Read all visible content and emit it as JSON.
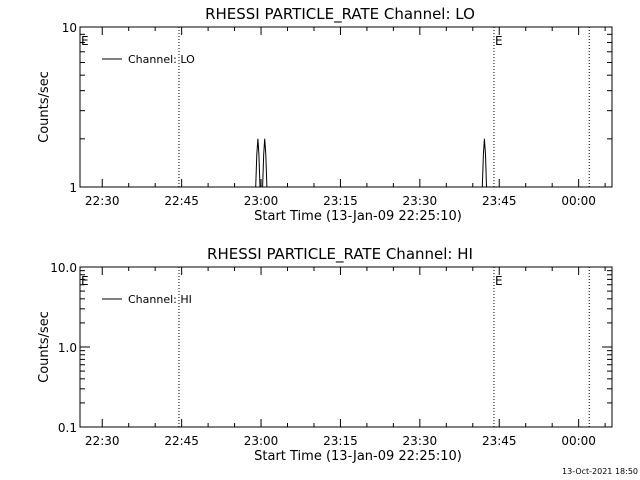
{
  "chart_data": [
    {
      "type": "line",
      "title": "RHESSI PARTICLE_RATE Channel: LO",
      "xlabel": "Start Time (13-Jan-09 22:25:10)",
      "ylabel": "Counts/sec",
      "y_scale": "log",
      "ylim": [
        1,
        10
      ],
      "y_ticks": [
        "1",
        "10"
      ],
      "x_ticks": [
        "22:30",
        "22:45",
        "23:00",
        "23:15",
        "23:30",
        "23:45",
        "00:00"
      ],
      "x_tick_minutes": [
        0,
        15,
        30,
        45,
        60,
        75,
        90
      ],
      "xlim_minutes": [
        -4.2,
        96.3
      ],
      "legend_placement": "top-left",
      "series": [
        {
          "name": "Channel: LO",
          "color": "#000000",
          "x_minutes": [
            29.0,
            29.2,
            29.4,
            29.6,
            29.8,
            30.0,
            30.3,
            30.5,
            30.7,
            30.9,
            31.1,
            31.3,
            71.8,
            72.0,
            72.2,
            72.4,
            72.6,
            72.8
          ],
          "values": [
            1,
            1.6,
            2,
            1.6,
            1,
            1,
            1,
            1.6,
            2,
            1.6,
            1,
            1,
            1,
            1.6,
            2,
            1.6,
            1,
            1
          ]
        }
      ],
      "vlines_minutes": [
        14.5,
        74.0,
        92.0
      ],
      "annotations": [
        {
          "text": "E",
          "x_minutes": -4.2
        },
        {
          "text": "E",
          "x_minutes": 74.0
        }
      ]
    },
    {
      "type": "line",
      "title": "RHESSI PARTICLE_RATE Channel: HI",
      "xlabel": "Start Time (13-Jan-09 22:25:10)",
      "ylabel": "Counts/sec",
      "y_scale": "log",
      "ylim": [
        0.1,
        10
      ],
      "y_ticks": [
        "0.1",
        "1.0",
        "10.0"
      ],
      "x_ticks": [
        "22:30",
        "22:45",
        "23:00",
        "23:15",
        "23:30",
        "23:45",
        "00:00"
      ],
      "x_tick_minutes": [
        0,
        15,
        30,
        45,
        60,
        75,
        90
      ],
      "xlim_minutes": [
        -4.2,
        96.3
      ],
      "legend_placement": "top-left",
      "series": [
        {
          "name": "Channel: HI",
          "color": "#000000",
          "x_minutes": [],
          "values": []
        }
      ],
      "vlines_minutes": [
        14.5,
        74.0,
        92.0
      ],
      "annotations": [
        {
          "text": "E",
          "x_minutes": -4.2
        },
        {
          "text": "E",
          "x_minutes": 74.0
        }
      ]
    }
  ],
  "footer": {
    "timestamp": "13-Oct-2021 18:50"
  }
}
